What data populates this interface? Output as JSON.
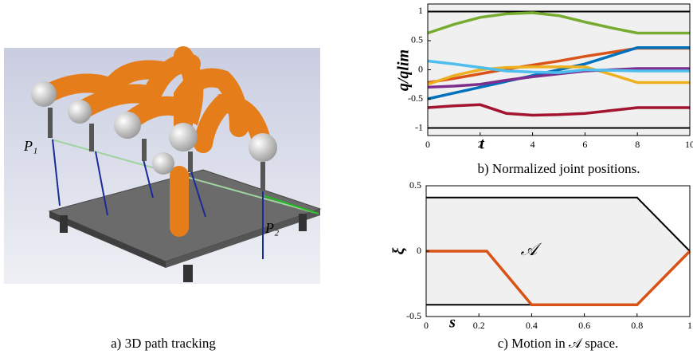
{
  "figure": {
    "left_panel": {
      "caption": "a) 3D path tracking",
      "labels": [
        "P₁",
        "P₂"
      ]
    }
  },
  "chart_data": [
    {
      "type": "line",
      "caption": "b) Normalized joint positions.",
      "x_label": "t",
      "y_label": "q/qlim",
      "x": [
        0,
        1,
        2,
        3,
        4,
        5,
        6,
        7,
        8,
        9,
        10
      ],
      "xlim": [
        0,
        10
      ],
      "xticks": [
        0,
        2,
        4,
        6,
        8,
        10
      ],
      "ylim": [
        -1.13,
        1.13
      ],
      "yticks": [
        -1,
        -0.5,
        0,
        0.5,
        1
      ],
      "background": "#f0f0f0",
      "series": [
        {
          "color": "#000000",
          "values": [
            1,
            1,
            1,
            1,
            1,
            1,
            1,
            1,
            1,
            1,
            1
          ]
        },
        {
          "color": "#000000",
          "values": [
            -1,
            -1,
            -1,
            -1,
            -1,
            -1,
            -1,
            -1,
            -1,
            -1,
            -1
          ]
        },
        {
          "color": "#77ac30",
          "values": [
            0.63,
            0.78,
            0.9,
            0.96,
            0.98,
            0.93,
            0.82,
            0.72,
            0.63,
            0.63,
            0.63
          ]
        },
        {
          "color": "#d95319",
          "values": [
            -0.22,
            -0.15,
            -0.07,
            0.01,
            0.08,
            0.15,
            0.23,
            0.3,
            0.37,
            0.37,
            0.37
          ]
        },
        {
          "color": "#0072bd",
          "values": [
            -0.5,
            -0.4,
            -0.3,
            -0.2,
            -0.1,
            0,
            0.1,
            0.24,
            0.38,
            0.38,
            0.38
          ]
        },
        {
          "color": "#edb120",
          "values": [
            -0.25,
            -0.1,
            0,
            0.04,
            0.05,
            0.05,
            0.05,
            -0.08,
            -0.22,
            -0.22,
            -0.22
          ]
        },
        {
          "color": "#7e2f8e",
          "values": [
            -0.3,
            -0.28,
            -0.25,
            -0.18,
            -0.12,
            -0.07,
            -0.02,
            0,
            0.02,
            0.02,
            0.02
          ]
        },
        {
          "color": "#4dbeee",
          "values": [
            0.15,
            0.1,
            0.04,
            -0.02,
            -0.04,
            -0.05,
            0,
            -0.01,
            -0.02,
            -0.02,
            -0.02
          ]
        },
        {
          "color": "#a2142f",
          "values": [
            -0.65,
            -0.62,
            -0.6,
            -0.75,
            -0.78,
            -0.77,
            -0.75,
            -0.7,
            -0.65,
            -0.65,
            -0.65
          ]
        }
      ]
    },
    {
      "type": "line",
      "caption": "c) Motion in 𝒜 space.",
      "x_label": "s",
      "y_label": "ξ",
      "annotation": "𝒜",
      "xlim": [
        0,
        1
      ],
      "xticks": [
        0,
        0.2,
        0.4,
        0.6,
        0.8,
        1
      ],
      "ylim": [
        -0.5,
        0.5
      ],
      "yticks": [
        -0.5,
        0,
        0.5
      ],
      "region_color": "#f0f0f0",
      "series": [
        {
          "color": "#000000",
          "x": [
            0,
            0.8,
            1
          ],
          "values": [
            0.41,
            0.41,
            0
          ]
        },
        {
          "color": "#000000",
          "x": [
            0,
            0.8,
            1
          ],
          "values": [
            -0.41,
            -0.41,
            0
          ]
        },
        {
          "color": "#d95319",
          "x": [
            0,
            0.23,
            0.4,
            0.8,
            1
          ],
          "values": [
            0,
            0,
            -0.41,
            -0.41,
            0
          ]
        }
      ]
    }
  ]
}
